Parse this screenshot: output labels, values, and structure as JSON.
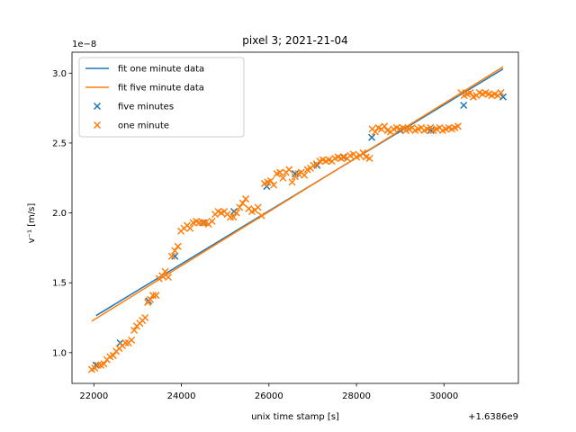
{
  "chart_data": {
    "type": "scatter",
    "title": "pixel 3; 2021-21-04",
    "xlabel": "unix time stamp [s]",
    "ylabel": "v⁻¹ [m/s]",
    "x_offset_label": "+1.6386e9",
    "y_scale_label": "1e−8",
    "xlim": [
      21500,
      31700
    ],
    "ylim": [
      0.78,
      3.15
    ],
    "xticks": [
      22000,
      24000,
      26000,
      28000,
      30000
    ],
    "xtick_labels": [
      "22000",
      "24000",
      "26000",
      "28000",
      "30000"
    ],
    "yticks": [
      1.0,
      1.5,
      2.0,
      2.5,
      3.0
    ],
    "ytick_labels": [
      "1.0",
      "1.5",
      "2.0",
      "2.5",
      "3.0"
    ],
    "grid": false,
    "legend_position": "top-left",
    "series": [
      {
        "name": "fit one minute data",
        "kind": "line",
        "color": "#1f77b4",
        "points": [
          [
            22050,
            1.265
          ],
          [
            31350,
            3.03
          ]
        ]
      },
      {
        "name": "fit five minute data",
        "kind": "line",
        "color": "#ff7f0e",
        "points": [
          [
            21950,
            1.225
          ],
          [
            31350,
            3.045
          ]
        ]
      },
      {
        "name": "five minutes",
        "kind": "scatter",
        "marker": "x",
        "color": "#1f77b4",
        "points": [
          [
            22050,
            0.91
          ],
          [
            22600,
            1.07
          ],
          [
            23250,
            1.37
          ],
          [
            23850,
            1.69
          ],
          [
            24500,
            1.93
          ],
          [
            25200,
            2.01
          ],
          [
            25950,
            2.19
          ],
          [
            26600,
            2.28
          ],
          [
            27100,
            2.34
          ],
          [
            27700,
            2.4
          ],
          [
            28350,
            2.54
          ],
          [
            29000,
            2.59
          ],
          [
            29700,
            2.59
          ],
          [
            30450,
            2.77
          ],
          [
            31350,
            2.83
          ]
        ]
      },
      {
        "name": "one minute",
        "kind": "scatter",
        "marker": "x",
        "color": "#ff7f0e",
        "points": [
          [
            21950,
            0.88
          ],
          [
            22020,
            0.89
          ],
          [
            22090,
            0.91
          ],
          [
            22160,
            0.91
          ],
          [
            22230,
            0.92
          ],
          [
            22300,
            0.95
          ],
          [
            22370,
            0.97
          ],
          [
            22440,
            0.98
          ],
          [
            22510,
            1.01
          ],
          [
            22580,
            1.03
          ],
          [
            22650,
            1.05
          ],
          [
            22720,
            1.07
          ],
          [
            22790,
            1.07
          ],
          [
            22860,
            1.09
          ],
          [
            22920,
            1.16
          ],
          [
            22980,
            1.19
          ],
          [
            23050,
            1.21
          ],
          [
            23110,
            1.23
          ],
          [
            23170,
            1.25
          ],
          [
            23230,
            1.36
          ],
          [
            23290,
            1.38
          ],
          [
            23350,
            1.41
          ],
          [
            23420,
            1.41
          ],
          [
            23490,
            1.53
          ],
          [
            23560,
            1.55
          ],
          [
            23630,
            1.58
          ],
          [
            23700,
            1.54
          ],
          [
            23780,
            1.69
          ],
          [
            23850,
            1.73
          ],
          [
            23920,
            1.76
          ],
          [
            23990,
            1.87
          ],
          [
            24060,
            1.89
          ],
          [
            24130,
            1.91
          ],
          [
            24200,
            1.89
          ],
          [
            24270,
            1.93
          ],
          [
            24340,
            1.94
          ],
          [
            24410,
            1.93
          ],
          [
            24480,
            1.93
          ],
          [
            24550,
            1.93
          ],
          [
            24620,
            1.92
          ],
          [
            24700,
            1.94
          ],
          [
            24770,
            1.99
          ],
          [
            24840,
            2.01
          ],
          [
            24910,
            2.0
          ],
          [
            24980,
            2.01
          ],
          [
            25050,
            1.99
          ],
          [
            25120,
            1.97
          ],
          [
            25190,
            1.97
          ],
          [
            25260,
            2.0
          ],
          [
            25330,
            2.04
          ],
          [
            25400,
            2.07
          ],
          [
            25470,
            2.1
          ],
          [
            25540,
            2.03
          ],
          [
            25610,
            2.01
          ],
          [
            25680,
            2.02
          ],
          [
            25750,
            2.04
          ],
          [
            25830,
            1.98
          ],
          [
            25900,
            2.21
          ],
          [
            25970,
            2.22
          ],
          [
            26040,
            2.23
          ],
          [
            26110,
            2.2
          ],
          [
            26180,
            2.28
          ],
          [
            26250,
            2.29
          ],
          [
            26320,
            2.25
          ],
          [
            26390,
            2.29
          ],
          [
            26460,
            2.31
          ],
          [
            26530,
            2.22
          ],
          [
            26600,
            2.26
          ],
          [
            26670,
            2.28
          ],
          [
            26740,
            2.29
          ],
          [
            26810,
            2.27
          ],
          [
            26880,
            2.31
          ],
          [
            26950,
            2.32
          ],
          [
            27020,
            2.34
          ],
          [
            27090,
            2.35
          ],
          [
            27160,
            2.37
          ],
          [
            27230,
            2.38
          ],
          [
            27300,
            2.37
          ],
          [
            27370,
            2.38
          ],
          [
            27440,
            2.37
          ],
          [
            27510,
            2.39
          ],
          [
            27580,
            2.4
          ],
          [
            27650,
            2.39
          ],
          [
            27720,
            2.4
          ],
          [
            27790,
            2.39
          ],
          [
            27860,
            2.41
          ],
          [
            27930,
            2.42
          ],
          [
            28000,
            2.4
          ],
          [
            28080,
            2.41
          ],
          [
            28150,
            2.43
          ],
          [
            28220,
            2.4
          ],
          [
            28300,
            2.39
          ],
          [
            28360,
            2.6
          ],
          [
            28430,
            2.58
          ],
          [
            28500,
            2.61
          ],
          [
            28570,
            2.6
          ],
          [
            28640,
            2.62
          ],
          [
            28710,
            2.59
          ],
          [
            28780,
            2.58
          ],
          [
            28850,
            2.6
          ],
          [
            28920,
            2.61
          ],
          [
            28990,
            2.6
          ],
          [
            29060,
            2.61
          ],
          [
            29130,
            2.59
          ],
          [
            29200,
            2.6
          ],
          [
            29270,
            2.61
          ],
          [
            29340,
            2.59
          ],
          [
            29410,
            2.6
          ],
          [
            29480,
            2.61
          ],
          [
            29550,
            2.59
          ],
          [
            29620,
            2.6
          ],
          [
            29690,
            2.61
          ],
          [
            29760,
            2.59
          ],
          [
            29830,
            2.6
          ],
          [
            29900,
            2.61
          ],
          [
            29970,
            2.59
          ],
          [
            30040,
            2.6
          ],
          [
            30110,
            2.61
          ],
          [
            30180,
            2.6
          ],
          [
            30250,
            2.61
          ],
          [
            30320,
            2.62
          ],
          [
            30390,
            2.86
          ],
          [
            30460,
            2.84
          ],
          [
            30530,
            2.85
          ],
          [
            30600,
            2.86
          ],
          [
            30670,
            2.83
          ],
          [
            30740,
            2.84
          ],
          [
            30810,
            2.86
          ],
          [
            30880,
            2.85
          ],
          [
            30950,
            2.86
          ],
          [
            31020,
            2.85
          ],
          [
            31090,
            2.84
          ],
          [
            31160,
            2.85
          ],
          [
            31230,
            2.84
          ],
          [
            31300,
            2.86
          ]
        ]
      }
    ]
  }
}
